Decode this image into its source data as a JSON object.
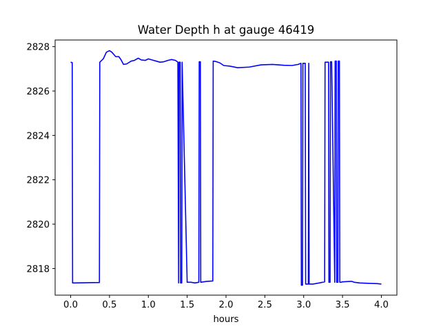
{
  "chart_data": {
    "type": "line",
    "title": "Water Depth h at gauge 46419",
    "xlabel": "hours",
    "ylabel": "",
    "xlim": [
      -0.2,
      4.2
    ],
    "ylim": [
      2816.8,
      2828.3
    ],
    "x_ticks": [
      0.0,
      0.5,
      1.0,
      1.5,
      2.0,
      2.5,
      3.0,
      3.5,
      4.0
    ],
    "x_tick_labels": [
      "0.0",
      "0.5",
      "1.0",
      "1.5",
      "2.0",
      "2.5",
      "3.0",
      "3.5",
      "4.0"
    ],
    "y_ticks": [
      2818,
      2820,
      2822,
      2824,
      2826,
      2828
    ],
    "y_tick_labels": [
      "2818",
      "2820",
      "2822",
      "2824",
      "2826",
      "2828"
    ],
    "grid": false,
    "legend": null,
    "series": [
      {
        "color": "#0000ff",
        "x": [
          0.0,
          0.02,
          0.025,
          0.05,
          0.37,
          0.375,
          0.42,
          0.46,
          0.5,
          0.53,
          0.58,
          0.62,
          0.65,
          0.68,
          0.72,
          0.78,
          0.82,
          0.87,
          0.91,
          0.96,
          1.0,
          1.05,
          1.1,
          1.15,
          1.2,
          1.25,
          1.3,
          1.35,
          1.38,
          1.39,
          1.395,
          1.41,
          1.415,
          1.43,
          1.435,
          1.5,
          1.55,
          1.6,
          1.65,
          1.655,
          1.67,
          1.675,
          1.75,
          1.83,
          1.835,
          1.87,
          1.92,
          1.97,
          2.05,
          2.15,
          2.3,
          2.45,
          2.6,
          2.75,
          2.85,
          2.93,
          2.965,
          2.97,
          2.985,
          2.99,
          3.02,
          3.025,
          3.03,
          3.06,
          3.065,
          3.07,
          3.12,
          3.2,
          3.27,
          3.275,
          3.32,
          3.325,
          3.34,
          3.345,
          3.36,
          3.4,
          3.405,
          3.42,
          3.425,
          3.44,
          3.445,
          3.46,
          3.465,
          3.48,
          3.5,
          3.6,
          3.62,
          3.65,
          3.72,
          3.85,
          3.95,
          4.0
        ],
        "y": [
          2827.3,
          2827.28,
          2817.35,
          2817.35,
          2817.37,
          2827.3,
          2827.45,
          2827.75,
          2827.82,
          2827.75,
          2827.55,
          2827.55,
          2827.4,
          2827.2,
          2827.22,
          2827.35,
          2827.38,
          2827.48,
          2827.4,
          2827.38,
          2827.45,
          2827.4,
          2827.35,
          2827.3,
          2827.32,
          2827.38,
          2827.42,
          2827.38,
          2827.3,
          2817.35,
          2827.3,
          2827.3,
          2817.35,
          2817.35,
          2827.3,
          2817.38,
          2817.38,
          2817.35,
          2817.38,
          2827.32,
          2827.32,
          2817.38,
          2817.42,
          2817.44,
          2827.35,
          2827.33,
          2827.27,
          2827.15,
          2827.12,
          2827.05,
          2827.08,
          2827.18,
          2827.2,
          2827.16,
          2827.15,
          2827.2,
          2827.25,
          2817.25,
          2817.25,
          2827.25,
          2827.25,
          2817.3,
          2817.3,
          2817.3,
          2827.25,
          2817.3,
          2817.3,
          2817.35,
          2817.4,
          2827.3,
          2827.3,
          2817.38,
          2817.38,
          2827.32,
          2827.32,
          2817.38,
          2827.35,
          2827.35,
          2817.38,
          2817.38,
          2827.35,
          2827.35,
          2817.38,
          2817.38,
          2817.4,
          2817.42,
          2817.42,
          2817.38,
          2817.35,
          2817.33,
          2817.32,
          2817.3
        ]
      }
    ]
  }
}
